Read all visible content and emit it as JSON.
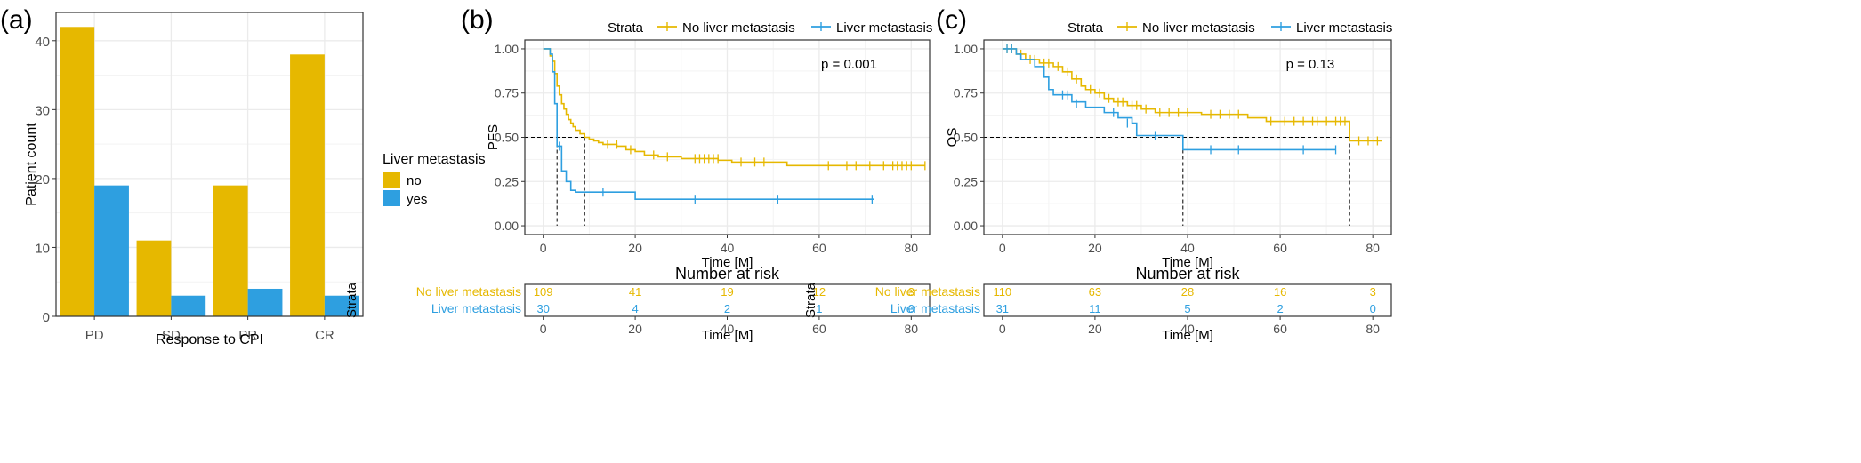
{
  "colors": {
    "no": "#E6B800",
    "yes": "#2E9FE0",
    "grid": "#ebebeb",
    "panel_border": "#333333",
    "text": "#000000"
  },
  "chart_data": [
    {
      "type": "bar",
      "panel_label": "(a)",
      "categories": [
        "PD",
        "SD",
        "PR",
        "CR"
      ],
      "series": [
        {
          "name": "no",
          "values": [
            42,
            11,
            19,
            38
          ]
        },
        {
          "name": "yes",
          "values": [
            19,
            3,
            4,
            3
          ]
        }
      ],
      "xlabel": "Response to CPI",
      "ylabel": "Patient count",
      "ylim": [
        0,
        44.1
      ],
      "yticks": [
        0,
        10,
        20,
        30,
        40
      ],
      "legend_title": "Liver metastasis",
      "legend_placement": "right",
      "grid": true
    },
    {
      "type": "line",
      "panel_label": "(b)",
      "legend_title": "Strata",
      "legend_entries": [
        "No liver metastasis",
        "Liver metastasis"
      ],
      "legend_placement": "top",
      "xlabel": "Time [M]",
      "ylabel": "PFS",
      "xlim": [
        -4,
        84
      ],
      "ylim": [
        -0.05,
        1.05
      ],
      "xticks": [
        0,
        20,
        40,
        60,
        80
      ],
      "yticks": [
        0,
        0.25,
        0.5,
        0.75,
        1
      ],
      "ytick_labels": [
        "0.00",
        "0.25",
        "0.50",
        "0.75",
        "1.00"
      ],
      "annotation": "p = 0.001",
      "grid": true,
      "median_lines": [
        3,
        9
      ],
      "series": [
        {
          "name": "No liver metastasis",
          "steps": [
            [
              0,
              1.0
            ],
            [
              1.5,
              0.96
            ],
            [
              2,
              0.93
            ],
            [
              2.5,
              0.86
            ],
            [
              3,
              0.79
            ],
            [
              3.5,
              0.74
            ],
            [
              4,
              0.69
            ],
            [
              4.5,
              0.66
            ],
            [
              5,
              0.63
            ],
            [
              5.5,
              0.6
            ],
            [
              6,
              0.58
            ],
            [
              6.5,
              0.56
            ],
            [
              7,
              0.54
            ],
            [
              8,
              0.52
            ],
            [
              9,
              0.5
            ],
            [
              10,
              0.49
            ],
            [
              11,
              0.48
            ],
            [
              12,
              0.47
            ],
            [
              13,
              0.46
            ],
            [
              16,
              0.45
            ],
            [
              18,
              0.43
            ],
            [
              20,
              0.42
            ],
            [
              22,
              0.4
            ],
            [
              25,
              0.39
            ],
            [
              30,
              0.38
            ],
            [
              38,
              0.37
            ],
            [
              41,
              0.36
            ],
            [
              53,
              0.34
            ]
          ],
          "end": 83,
          "censors": [
            [
              14,
              0.46
            ],
            [
              16,
              0.46
            ],
            [
              19,
              0.43
            ],
            [
              24,
              0.4
            ],
            [
              27,
              0.39
            ],
            [
              33,
              0.38
            ],
            [
              34,
              0.38
            ],
            [
              35,
              0.38
            ],
            [
              36,
              0.38
            ],
            [
              37,
              0.38
            ],
            [
              38,
              0.38
            ],
            [
              43,
              0.36
            ],
            [
              46,
              0.36
            ],
            [
              48,
              0.36
            ],
            [
              62,
              0.34
            ],
            [
              66,
              0.34
            ],
            [
              68,
              0.34
            ],
            [
              71,
              0.34
            ],
            [
              74,
              0.34
            ],
            [
              76,
              0.34
            ],
            [
              77,
              0.34
            ],
            [
              78,
              0.34
            ],
            [
              79,
              0.34
            ],
            [
              80,
              0.34
            ],
            [
              83,
              0.34
            ]
          ]
        },
        {
          "name": "Liver metastasis",
          "steps": [
            [
              0,
              1.0
            ],
            [
              1,
              1.0
            ],
            [
              1.5,
              0.97
            ],
            [
              2,
              0.87
            ],
            [
              2.5,
              0.69
            ],
            [
              3,
              0.45
            ],
            [
              4,
              0.31
            ],
            [
              5,
              0.25
            ],
            [
              6,
              0.2
            ],
            [
              7,
              0.19
            ],
            [
              20,
              0.15
            ]
          ],
          "end": 72,
          "censors": [
            [
              3.5,
              0.45
            ],
            [
              13,
              0.19
            ],
            [
              33,
              0.15
            ],
            [
              51,
              0.15
            ],
            [
              71.5,
              0.15
            ]
          ]
        }
      ],
      "risk_table": {
        "title": "Number at risk",
        "strata_label": "Strata",
        "times": [
          0,
          20,
          40,
          60,
          80
        ],
        "rows": [
          {
            "name": "No liver metastasis",
            "values": [
              "109",
              "41",
              "19",
              "12",
              "3"
            ]
          },
          {
            "name": "Liver metastasis",
            "values": [
              "30",
              "4",
              "2",
              "1",
              "0"
            ]
          }
        ],
        "xlabel": "Time [M]"
      }
    },
    {
      "type": "line",
      "panel_label": "(c)",
      "legend_title": "Strata",
      "legend_entries": [
        "No liver metastasis",
        "Liver metastasis"
      ],
      "legend_placement": "top",
      "xlabel": "Time [M]",
      "ylabel": "OS",
      "xlim": [
        -4,
        84
      ],
      "ylim": [
        -0.05,
        1.05
      ],
      "xticks": [
        0,
        20,
        40,
        60,
        80
      ],
      "yticks": [
        0,
        0.25,
        0.5,
        0.75,
        1
      ],
      "ytick_labels": [
        "0.00",
        "0.25",
        "0.50",
        "0.75",
        "1.00"
      ],
      "annotation": "p = 0.13",
      "grid": true,
      "median_lines": [
        39,
        75
      ],
      "series": [
        {
          "name": "No liver metastasis",
          "steps": [
            [
              0,
              1.0
            ],
            [
              3,
              0.97
            ],
            [
              5,
              0.94
            ],
            [
              8,
              0.92
            ],
            [
              11,
              0.9
            ],
            [
              13,
              0.87
            ],
            [
              15,
              0.83
            ],
            [
              17,
              0.79
            ],
            [
              18,
              0.77
            ],
            [
              20,
              0.75
            ],
            [
              22,
              0.72
            ],
            [
              24,
              0.7
            ],
            [
              27,
              0.68
            ],
            [
              30,
              0.66
            ],
            [
              33,
              0.64
            ],
            [
              43,
              0.63
            ],
            [
              53,
              0.61
            ],
            [
              57,
              0.59
            ],
            [
              75,
              0.48
            ]
          ],
          "end": 82,
          "censors": [
            [
              1,
              1.0
            ],
            [
              2,
              1.0
            ],
            [
              4,
              0.97
            ],
            [
              6,
              0.94
            ],
            [
              7,
              0.94
            ],
            [
              9,
              0.92
            ],
            [
              10,
              0.92
            ],
            [
              12,
              0.9
            ],
            [
              14,
              0.87
            ],
            [
              16,
              0.83
            ],
            [
              19,
              0.77
            ],
            [
              21,
              0.75
            ],
            [
              23,
              0.72
            ],
            [
              25,
              0.7
            ],
            [
              26,
              0.7
            ],
            [
              28,
              0.68
            ],
            [
              29,
              0.68
            ],
            [
              31,
              0.66
            ],
            [
              34,
              0.64
            ],
            [
              36,
              0.64
            ],
            [
              38,
              0.64
            ],
            [
              40,
              0.64
            ],
            [
              45,
              0.63
            ],
            [
              47,
              0.63
            ],
            [
              49,
              0.63
            ],
            [
              51,
              0.63
            ],
            [
              58,
              0.59
            ],
            [
              61,
              0.59
            ],
            [
              63,
              0.59
            ],
            [
              65,
              0.59
            ],
            [
              67,
              0.59
            ],
            [
              68,
              0.59
            ],
            [
              70,
              0.59
            ],
            [
              72,
              0.59
            ],
            [
              73,
              0.59
            ],
            [
              74,
              0.59
            ],
            [
              77,
              0.48
            ],
            [
              79,
              0.48
            ],
            [
              81,
              0.48
            ]
          ]
        },
        {
          "name": "Liver metastasis",
          "steps": [
            [
              0,
              1.0
            ],
            [
              3,
              0.97
            ],
            [
              4,
              0.94
            ],
            [
              7,
              0.9
            ],
            [
              9,
              0.84
            ],
            [
              10,
              0.77
            ],
            [
              11,
              0.74
            ],
            [
              15,
              0.7
            ],
            [
              18,
              0.67
            ],
            [
              22,
              0.64
            ],
            [
              25,
              0.61
            ],
            [
              28,
              0.58
            ],
            [
              29,
              0.51
            ],
            [
              39,
              0.43
            ]
          ],
          "end": 72,
          "censors": [
            [
              1,
              1.0
            ],
            [
              2,
              1.0
            ],
            [
              13,
              0.74
            ],
            [
              14,
              0.74
            ],
            [
              16,
              0.69
            ],
            [
              24,
              0.64
            ],
            [
              27,
              0.58
            ],
            [
              33,
              0.51
            ],
            [
              45,
              0.43
            ],
            [
              51,
              0.43
            ],
            [
              65,
              0.43
            ],
            [
              72,
              0.43
            ]
          ]
        }
      ],
      "risk_table": {
        "title": "Number at risk",
        "strata_label": "Strata",
        "times": [
          0,
          20,
          40,
          60,
          80
        ],
        "rows": [
          {
            "name": "No liver metastasis",
            "values": [
              "110",
              "63",
              "28",
              "16",
              "3"
            ]
          },
          {
            "name": "Liver metastasis",
            "values": [
              "31",
              "11",
              "5",
              "2",
              "0"
            ]
          }
        ],
        "xlabel": "Time [M]"
      }
    }
  ]
}
